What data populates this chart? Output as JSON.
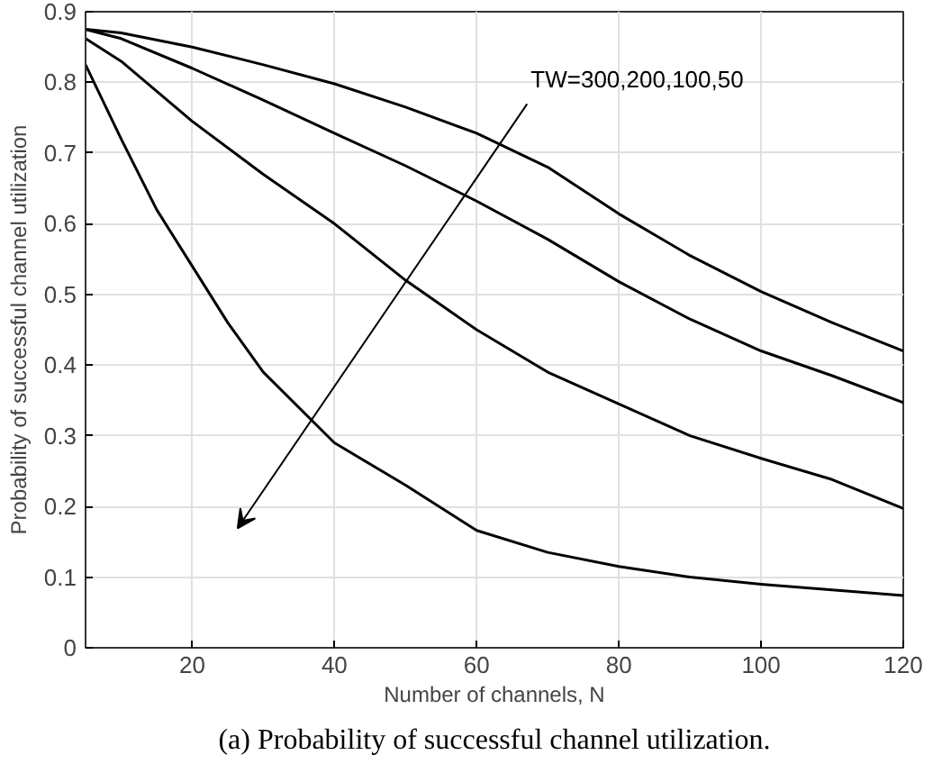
{
  "chart_data": {
    "type": "line",
    "xlabel": "Number of channels, N",
    "ylabel": "Probability of successful channel utilization",
    "xlim": [
      5,
      120
    ],
    "xticks": [
      20,
      40,
      60,
      80,
      100,
      120
    ],
    "ylim": [
      0,
      0.9
    ],
    "yticks": [
      0,
      0.1,
      0.2,
      0.3,
      0.4,
      0.5,
      0.6,
      0.7,
      0.8,
      0.9
    ],
    "grid": true,
    "marker": "none",
    "line_style": "solid",
    "series": [
      {
        "color": "#000000",
        "x": [
          5,
          10,
          20,
          30,
          40,
          50,
          60,
          70,
          80,
          90,
          100,
          110,
          120
        ],
        "values": [
          0.875,
          0.87,
          0.85,
          0.825,
          0.798,
          0.765,
          0.728,
          0.68,
          0.614,
          0.555,
          0.504,
          0.46,
          0.42
        ]
      },
      {
        "color": "#000000",
        "x": [
          5,
          10,
          20,
          30,
          40,
          50,
          60,
          70,
          80,
          90,
          100,
          110,
          120
        ],
        "values": [
          0.875,
          0.862,
          0.82,
          0.775,
          0.728,
          0.682,
          0.632,
          0.578,
          0.518,
          0.465,
          0.42,
          0.385,
          0.347
        ]
      },
      {
        "color": "#000000",
        "x": [
          5,
          10,
          20,
          30,
          40,
          50,
          60,
          70,
          80,
          90,
          100,
          110,
          120
        ],
        "values": [
          0.862,
          0.83,
          0.745,
          0.67,
          0.6,
          0.52,
          0.45,
          0.39,
          0.345,
          0.3,
          0.268,
          0.238,
          0.197
        ]
      },
      {
        "color": "#000000",
        "x": [
          5,
          10,
          15,
          20,
          25,
          30,
          40,
          50,
          60,
          70,
          80,
          90,
          100,
          110,
          120
        ],
        "values": [
          0.825,
          0.72,
          0.62,
          0.54,
          0.46,
          0.39,
          0.29,
          0.23,
          0.166,
          0.135,
          0.115,
          0.1,
          0.09,
          0.082,
          0.074
        ]
      }
    ],
    "annotations": [
      "TW=300,200,100,50",
      "(a) Probability of successful channel utilization."
    ]
  }
}
